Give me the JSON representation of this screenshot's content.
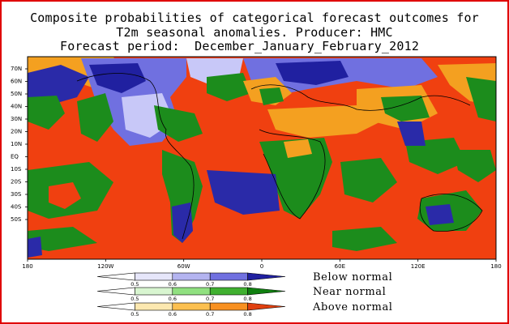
{
  "title": {
    "line1": "Composite probabilities of categorical forecast outcomes for",
    "line2": "T2m seasonal anomalies. Producer: HMC",
    "line3": "Forecast period:  December_January_February_2012"
  },
  "map": {
    "lat_labels": [
      "70N",
      "60N",
      "50N",
      "40N",
      "30N",
      "20N",
      "10N",
      "EQ",
      "10S",
      "20S",
      "30S",
      "40S",
      "50S"
    ],
    "lon_labels": [
      "180",
      "120W",
      "60W",
      "0",
      "60E",
      "120E",
      "180"
    ],
    "colors": {
      "ocean_above": "#f04010",
      "near_green": "#1c8c1c",
      "below_blue": "#2a2aa8",
      "above_orange": "#f4a020",
      "pale_blue": "#c8c8f8"
    }
  },
  "legend": {
    "ticks": [
      "0.5",
      "0.6",
      "0.7",
      "0.8"
    ],
    "rows": [
      {
        "label": "Below normal",
        "colors": [
          "#e6e6fa",
          "#b4b4f0",
          "#7070e0",
          "#2020a0"
        ]
      },
      {
        "label": "Near normal",
        "colors": [
          "#d8f5d0",
          "#90e080",
          "#40b030",
          "#108010"
        ]
      },
      {
        "label": "Above normal",
        "colors": [
          "#fce8b0",
          "#fcc050",
          "#f89020",
          "#e04010"
        ]
      }
    ]
  }
}
